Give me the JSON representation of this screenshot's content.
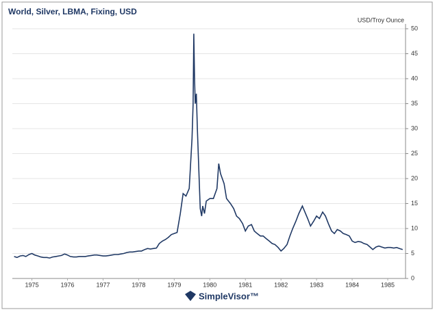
{
  "chart_data": {
    "type": "line",
    "title": "World, Silver, LBMA, Fixing, USD",
    "y_label": "USD/Troy Ounce",
    "x": [
      1975.0,
      1975.08,
      1975.17,
      1975.25,
      1975.33,
      1975.42,
      1975.5,
      1975.58,
      1975.67,
      1975.75,
      1975.83,
      1975.92,
      1976.0,
      1976.08,
      1976.17,
      1976.25,
      1976.33,
      1976.42,
      1976.5,
      1976.58,
      1976.67,
      1976.75,
      1976.83,
      1976.92,
      1977.0,
      1977.08,
      1977.17,
      1977.25,
      1977.33,
      1977.42,
      1977.5,
      1977.58,
      1977.67,
      1977.75,
      1977.83,
      1977.92,
      1978.0,
      1978.08,
      1978.17,
      1978.25,
      1978.33,
      1978.42,
      1978.5,
      1978.58,
      1978.67,
      1978.75,
      1978.83,
      1978.92,
      1979.0,
      1979.08,
      1979.17,
      1979.25,
      1979.33,
      1979.42,
      1979.5,
      1979.58,
      1979.67,
      1979.75,
      1979.83,
      1979.92,
      1980.0,
      1980.03,
      1980.05,
      1980.07,
      1980.09,
      1980.12,
      1980.15,
      1980.2,
      1980.23,
      1980.27,
      1980.3,
      1980.35,
      1980.4,
      1980.5,
      1980.6,
      1980.7,
      1980.75,
      1980.8,
      1980.9,
      1980.97,
      1981.08,
      1981.17,
      1981.25,
      1981.33,
      1981.42,
      1981.5,
      1981.58,
      1981.67,
      1981.75,
      1981.83,
      1981.92,
      1982.0,
      1982.08,
      1982.17,
      1982.25,
      1982.33,
      1982.42,
      1982.5,
      1982.58,
      1982.67,
      1982.75,
      1982.83,
      1982.92,
      1983.0,
      1983.1,
      1983.25,
      1983.33,
      1983.42,
      1983.5,
      1983.58,
      1983.67,
      1983.75,
      1983.83,
      1983.92,
      1984.0,
      1984.08,
      1984.17,
      1984.25,
      1984.33,
      1984.42,
      1984.5,
      1984.58,
      1984.67,
      1984.75,
      1984.83,
      1984.92,
      1985.0,
      1985.08,
      1985.17,
      1985.25,
      1985.33,
      1985.42,
      1985.5,
      1985.58,
      1985.67,
      1985.75,
      1985.83,
      1985.92
    ],
    "series": [
      {
        "name": "Silver",
        "color": "#1f3864",
        "values": [
          4.4,
          4.2,
          4.5,
          4.6,
          4.4,
          4.8,
          5.0,
          4.7,
          4.5,
          4.3,
          4.2,
          4.2,
          4.1,
          4.3,
          4.4,
          4.5,
          4.6,
          4.9,
          4.7,
          4.4,
          4.3,
          4.3,
          4.4,
          4.4,
          4.4,
          4.5,
          4.6,
          4.7,
          4.7,
          4.6,
          4.5,
          4.5,
          4.6,
          4.7,
          4.8,
          4.8,
          4.9,
          5.0,
          5.2,
          5.3,
          5.3,
          5.4,
          5.5,
          5.5,
          5.8,
          6.0,
          5.9,
          6.0,
          6.1,
          7.0,
          7.5,
          7.8,
          8.2,
          8.8,
          9.0,
          9.2,
          13,
          17,
          16.5,
          18,
          28,
          35,
          49,
          40,
          35,
          37,
          30,
          20,
          14,
          12.5,
          14.5,
          13,
          15.5,
          16,
          16,
          18,
          23,
          21,
          19,
          16,
          15,
          14,
          12.5,
          12,
          11,
          9.5,
          10.5,
          10.8,
          9.5,
          9,
          8.5,
          8.5,
          8,
          7.5,
          7,
          6.8,
          6.2,
          5.5,
          6,
          6.8,
          8.5,
          10,
          11.5,
          13,
          14.5,
          12,
          10.5,
          11.5,
          12.5,
          12,
          13.3,
          12.5,
          11,
          9.5,
          9,
          9.8,
          9.5,
          9,
          8.8,
          8.5,
          7.5,
          7.2,
          7.4,
          7.3,
          7.0,
          6.8,
          6.3,
          5.8,
          6.3,
          6.5,
          6.3,
          6.1,
          6.2,
          6.2,
          6.1,
          6.2,
          6.0,
          5.8
        ]
      }
    ],
    "xlim": [
      1974.95,
      1986.0
    ],
    "xticks": [
      {
        "value": 1975.5,
        "label": "1975"
      },
      {
        "value": 1976.5,
        "label": "1976"
      },
      {
        "value": 1977.5,
        "label": "1977"
      },
      {
        "value": 1978.5,
        "label": "1978"
      },
      {
        "value": 1979.5,
        "label": "1979"
      },
      {
        "value": 1980.5,
        "label": "1980"
      },
      {
        "value": 1981.5,
        "label": "1981"
      },
      {
        "value": 1982.5,
        "label": "1982"
      },
      {
        "value": 1983.5,
        "label": "1983"
      },
      {
        "value": 1984.5,
        "label": "1984"
      },
      {
        "value": 1985.5,
        "label": "1985"
      }
    ],
    "ylim": [
      0,
      50
    ],
    "yticks": [
      0,
      5,
      10,
      15,
      20,
      25,
      30,
      35,
      40,
      45,
      50
    ],
    "grid": true
  },
  "footer": {
    "brand": "SimpleVisor™"
  }
}
